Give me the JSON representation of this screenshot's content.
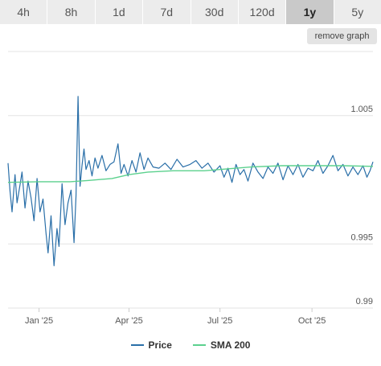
{
  "range_tabs": [
    {
      "label": "4h",
      "active": false
    },
    {
      "label": "8h",
      "active": false
    },
    {
      "label": "1d",
      "active": false
    },
    {
      "label": "7d",
      "active": false
    },
    {
      "label": "30d",
      "active": false
    },
    {
      "label": "120d",
      "active": false
    },
    {
      "label": "1y",
      "active": true
    },
    {
      "label": "5y",
      "active": false
    }
  ],
  "remove_graph_label": "remove graph",
  "colors": {
    "price": "#2a6fa8",
    "sma": "#5cd18e",
    "grid": "#e3e3e3"
  },
  "chart_data": {
    "type": "line",
    "x_ticks": [
      "Jan '25",
      "Apr '25",
      "Jul '25",
      "Oct '25"
    ],
    "x_tick_dates": [
      "2025-01-01",
      "2025-04-01",
      "2025-07-01",
      "2025-10-01"
    ],
    "x_range": [
      "2024-12-01",
      "2025-12-01"
    ],
    "y_ticks": [
      0.99,
      0.995,
      1.005
    ],
    "y_tick_labels": [
      "0.99",
      "0.995",
      "1.005"
    ],
    "ylim": [
      0.99,
      1.01
    ],
    "grid": "horizontal",
    "legend_position": "bottom",
    "series": [
      {
        "name": "Price",
        "x": [
          "2024-12-01",
          "2024-12-03",
          "2024-12-05",
          "2024-12-08",
          "2024-12-10",
          "2024-12-13",
          "2024-12-15",
          "2024-12-18",
          "2024-12-21",
          "2024-12-24",
          "2024-12-27",
          "2024-12-30",
          "2025-01-02",
          "2025-01-05",
          "2025-01-08",
          "2025-01-10",
          "2025-01-13",
          "2025-01-16",
          "2025-01-19",
          "2025-01-21",
          "2025-01-24",
          "2025-01-27",
          "2025-01-30",
          "2025-02-02",
          "2025-02-05",
          "2025-02-07",
          "2025-02-09",
          "2025-02-11",
          "2025-02-13",
          "2025-02-15",
          "2025-02-17",
          "2025-02-20",
          "2025-02-23",
          "2025-02-26",
          "2025-03-01",
          "2025-03-05",
          "2025-03-09",
          "2025-03-13",
          "2025-03-17",
          "2025-03-21",
          "2025-03-24",
          "2025-03-27",
          "2025-03-31",
          "2025-04-04",
          "2025-04-08",
          "2025-04-12",
          "2025-04-16",
          "2025-04-20",
          "2025-04-25",
          "2025-05-01",
          "2025-05-07",
          "2025-05-13",
          "2025-05-19",
          "2025-05-25",
          "2025-06-01",
          "2025-06-07",
          "2025-06-13",
          "2025-06-19",
          "2025-06-25",
          "2025-07-01",
          "2025-07-05",
          "2025-07-09",
          "2025-07-13",
          "2025-07-17",
          "2025-07-21",
          "2025-07-25",
          "2025-07-29",
          "2025-08-03",
          "2025-08-08",
          "2025-08-13",
          "2025-08-18",
          "2025-08-23",
          "2025-08-28",
          "2025-09-02",
          "2025-09-07",
          "2025-09-12",
          "2025-09-17",
          "2025-09-22",
          "2025-09-27",
          "2025-10-02",
          "2025-10-07",
          "2025-10-12",
          "2025-10-17",
          "2025-10-22",
          "2025-10-27",
          "2025-11-01",
          "2025-11-06",
          "2025-11-11",
          "2025-11-16",
          "2025-11-21",
          "2025-11-25",
          "2025-11-28",
          "2025-12-01"
        ],
        "values": [
          1.0013,
          0.9991,
          0.9975,
          1.0004,
          0.9982,
          0.9996,
          1.0006,
          0.9978,
          0.9999,
          0.9986,
          0.9968,
          1.0001,
          0.9975,
          0.9985,
          0.9958,
          0.9943,
          0.9972,
          0.9933,
          0.9962,
          0.9948,
          0.9997,
          0.9965,
          0.9982,
          0.9992,
          0.9951,
          0.9988,
          1.0065,
          0.9995,
          1.0011,
          1.0024,
          1.0008,
          1.0015,
          1.0003,
          1.0017,
          1.0009,
          1.0019,
          1.0007,
          1.0012,
          1.0014,
          1.0028,
          1.0005,
          1.0012,
          1.0003,
          1.0015,
          1.0006,
          1.0021,
          1.0008,
          1.0017,
          1.001,
          1.0009,
          1.0013,
          1.0008,
          1.0016,
          1.001,
          1.0012,
          1.0015,
          1.0009,
          1.0013,
          1.0006,
          1.0011,
          1.0002,
          1.0009,
          0.9998,
          1.0012,
          1.0004,
          1.0008,
          0.9999,
          1.0013,
          1.0006,
          1.0001,
          1.001,
          1.0005,
          1.0013,
          1.0,
          1.0011,
          1.0004,
          1.0012,
          1.0002,
          1.0009,
          1.0007,
          1.0015,
          1.0005,
          1.0011,
          1.0019,
          1.0007,
          1.0012,
          1.0003,
          1.001,
          1.0004,
          1.0011,
          1.0002,
          1.0007,
          1.0014
        ]
      },
      {
        "name": "SMA 200",
        "x": [
          "2024-12-01",
          "2025-01-01",
          "2025-02-01",
          "2025-02-20",
          "2025-03-15",
          "2025-04-01",
          "2025-04-20",
          "2025-05-15",
          "2025-06-15",
          "2025-07-01",
          "2025-08-01",
          "2025-09-01",
          "2025-10-01",
          "2025-11-01",
          "2025-12-01"
        ],
        "values": [
          0.9998,
          0.99985,
          0.99985,
          0.99995,
          1.0001,
          1.0004,
          1.0006,
          1.0007,
          1.0007,
          1.0008,
          1.001,
          1.0011,
          1.0011,
          1.0011,
          1.00105
        ]
      }
    ]
  }
}
